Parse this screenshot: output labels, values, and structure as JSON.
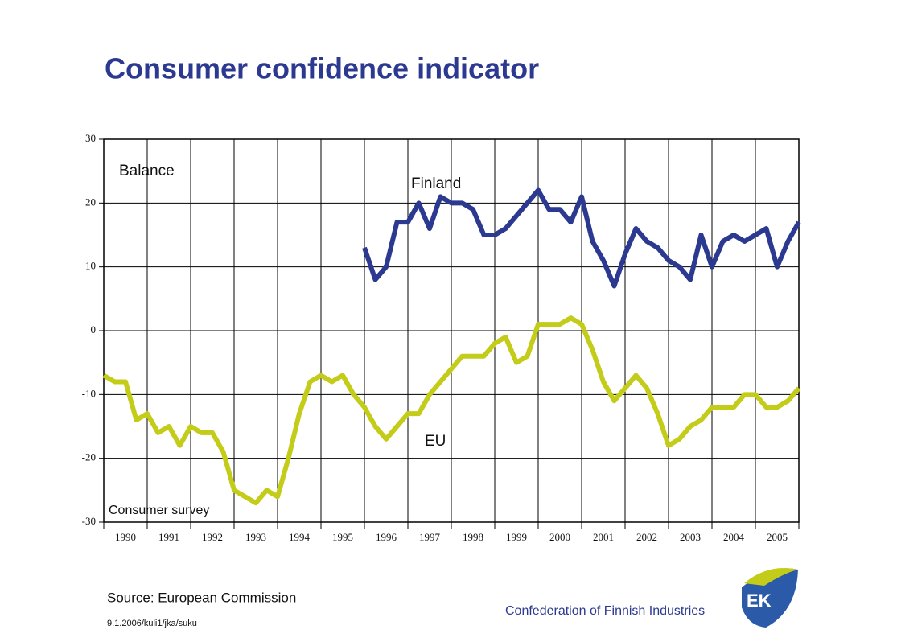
{
  "chart_data": {
    "type": "line",
    "title": "Consumer confidence indicator",
    "y_axis_label": "Balance",
    "note": "Consumer survey",
    "source": "Source: European Commission",
    "footer": "9.1.2006/kuli1/jka/suku",
    "organization": "Confederation of Finnish Industries",
    "logo": "EK",
    "x": [
      1990,
      1990.25,
      1990.5,
      1990.75,
      1991,
      1991.25,
      1991.5,
      1991.75,
      1992,
      1992.25,
      1992.5,
      1992.75,
      1993,
      1993.25,
      1993.5,
      1993.75,
      1994,
      1994.25,
      1994.5,
      1994.75,
      1995,
      1995.25,
      1995.5,
      1995.75,
      1996,
      1996.25,
      1996.5,
      1996.75,
      1997,
      1997.25,
      1997.5,
      1997.75,
      1998,
      1998.25,
      1998.5,
      1998.75,
      1999,
      1999.25,
      1999.5,
      1999.75,
      2000,
      2000.25,
      2000.5,
      2000.75,
      2001,
      2001.25,
      2001.5,
      2001.75,
      2002,
      2002.25,
      2002.5,
      2002.75,
      2003,
      2003.25,
      2003.5,
      2003.75,
      2004,
      2004.25,
      2004.5,
      2004.75,
      2005,
      2005.25,
      2005.5,
      2005.75,
      2006
    ],
    "x_labels": [
      "1990",
      "1991",
      "1992",
      "1993",
      "1994",
      "1995",
      "1996",
      "1997",
      "1998",
      "1999",
      "2000",
      "2001",
      "2002",
      "2003",
      "2004",
      "2005"
    ],
    "xlim": [
      1990,
      2006
    ],
    "xticks": [
      1990,
      1991,
      1992,
      1993,
      1994,
      1995,
      1996,
      1997,
      1998,
      1999,
      2000,
      2001,
      2002,
      2003,
      2004,
      2005,
      2006
    ],
    "ylim": [
      -30,
      30
    ],
    "yticks": [
      -30,
      -20,
      -10,
      0,
      10,
      20,
      30
    ],
    "grid": true,
    "series": [
      {
        "name": "Finland",
        "color": "#2b3990",
        "values": [
          null,
          null,
          null,
          null,
          null,
          null,
          null,
          null,
          null,
          null,
          null,
          null,
          null,
          null,
          null,
          null,
          null,
          null,
          null,
          null,
          null,
          null,
          null,
          null,
          13,
          8,
          10,
          17,
          17,
          20,
          16,
          21,
          20,
          20,
          19,
          15,
          15,
          16,
          18,
          20,
          22,
          19,
          19,
          17,
          21,
          14,
          11,
          7,
          12,
          16,
          14,
          13,
          11,
          10,
          8,
          15,
          10,
          14,
          15,
          14,
          15,
          16,
          10,
          14,
          17
        ]
      },
      {
        "name": "EU",
        "color": "#c4cc1a",
        "values": [
          -7,
          -8,
          -8,
          -14,
          -13,
          -16,
          -15,
          -18,
          -15,
          -16,
          -16,
          -19,
          -25,
          -26,
          -27,
          -25,
          -26,
          -20,
          -13,
          -8,
          -7,
          -8,
          -7,
          -10,
          -12,
          -15,
          -17,
          -15,
          -13,
          -13,
          -10,
          -8,
          -6,
          -4,
          -4,
          -4,
          -2,
          -1,
          -5,
          -4,
          1,
          1,
          1,
          2,
          1,
          -3,
          -8,
          -11,
          -9,
          -7,
          -9,
          -13,
          -18,
          -17,
          -15,
          -14,
          -12,
          -12,
          -12,
          -10,
          -10,
          -12,
          -12,
          -11,
          -9
        ]
      }
    ]
  }
}
